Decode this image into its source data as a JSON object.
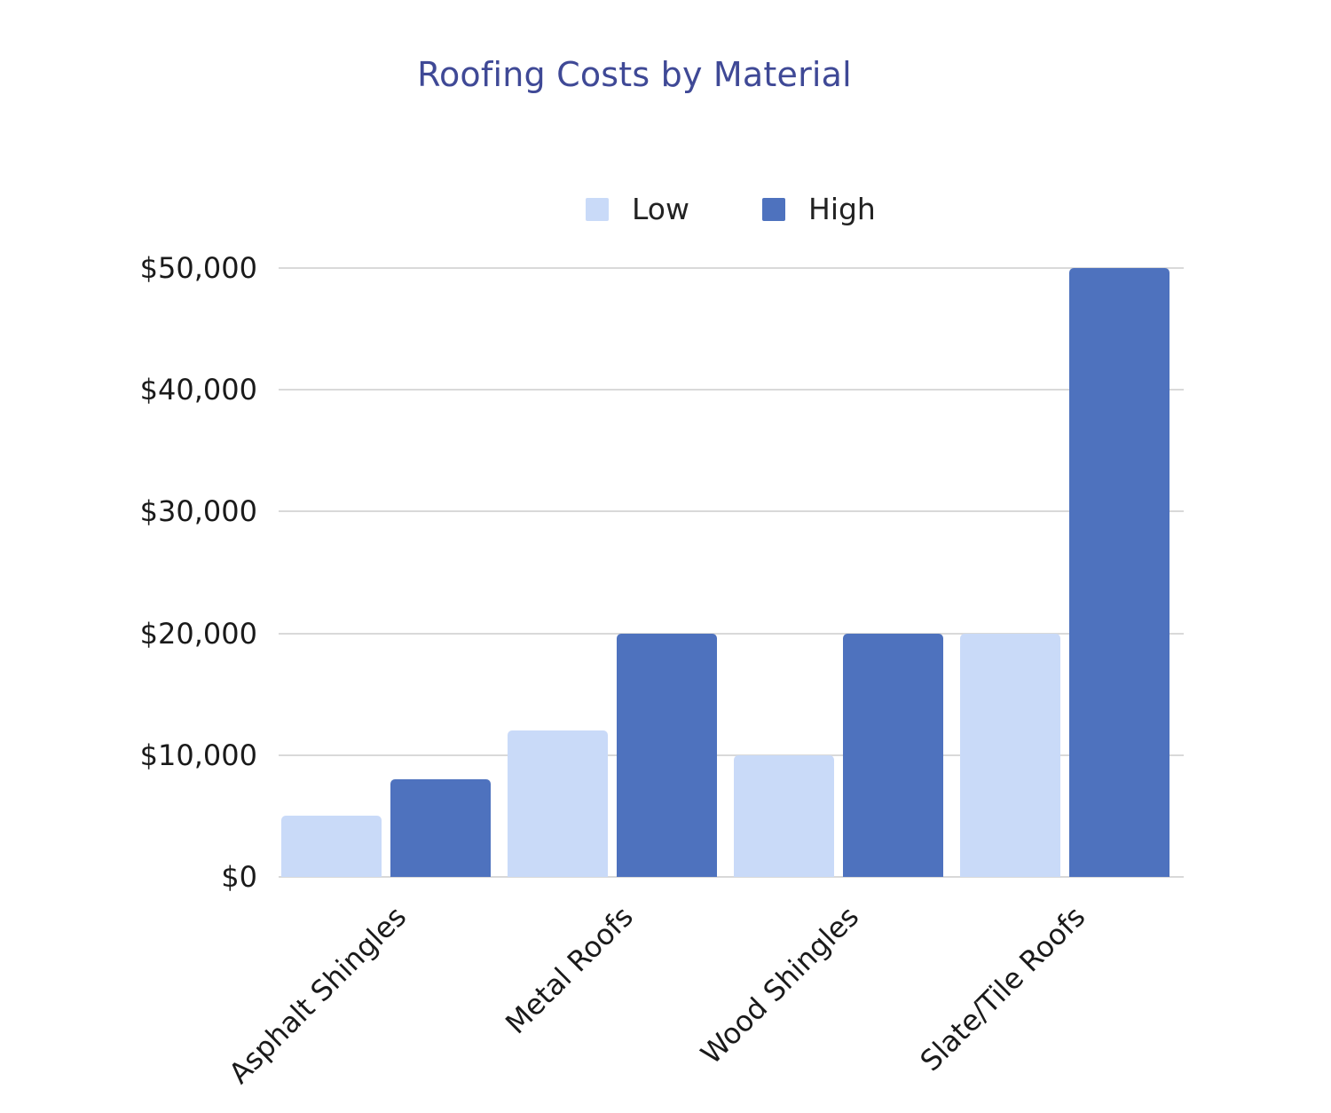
{
  "title": "Roofing Costs by Material",
  "legend": [
    {
      "label": "Low",
      "color": "#c9daf8"
    },
    {
      "label": "High",
      "color": "#4e72be"
    }
  ],
  "y_axis": {
    "ticks": [
      "$0",
      "$10,000",
      "$20,000",
      "$30,000",
      "$40,000",
      "$50,000"
    ]
  },
  "x_axis": {
    "categories": [
      "Asphalt Shingles",
      "Metal Roofs",
      "Wood Shingles",
      "Slate/Tile Roofs"
    ]
  },
  "chart_data": {
    "type": "bar",
    "title": "Roofing Costs by Material",
    "xlabel": "",
    "ylabel": "",
    "categories": [
      "Asphalt Shingles",
      "Metal Roofs",
      "Wood Shingles",
      "Slate/Tile Roofs"
    ],
    "series": [
      {
        "name": "Low",
        "color": "#c9daf8",
        "values": [
          5000,
          12000,
          10000,
          20000
        ]
      },
      {
        "name": "High",
        "color": "#4e72be",
        "values": [
          8000,
          20000,
          20000,
          50000
        ]
      }
    ],
    "ylim": [
      0,
      50000
    ],
    "yticks": [
      0,
      10000,
      20000,
      30000,
      40000,
      50000
    ],
    "ytick_labels": [
      "$0",
      "$10,000",
      "$20,000",
      "$30,000",
      "$40,000",
      "$50,000"
    ],
    "grid": true,
    "legend_position": "top"
  }
}
